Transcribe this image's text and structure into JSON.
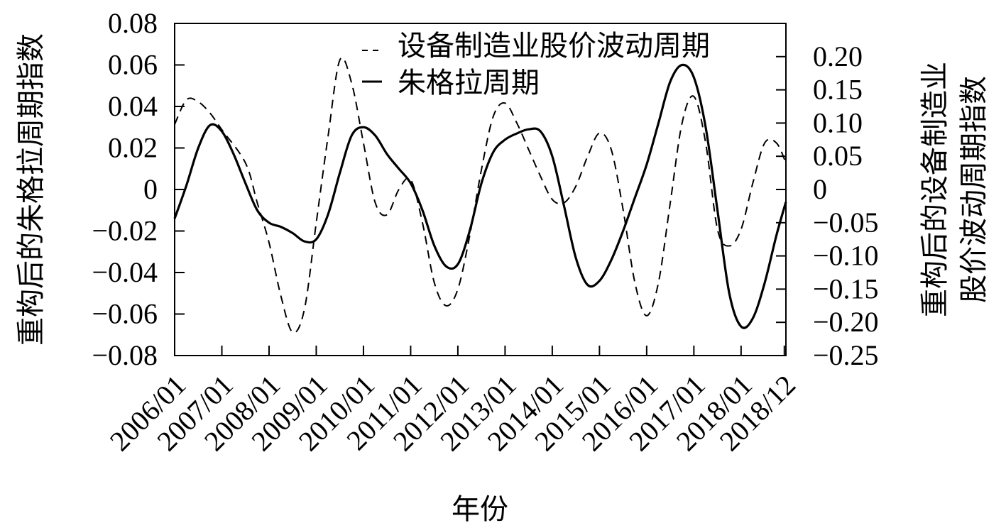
{
  "chart_data": {
    "type": "line",
    "xlabel": "年份",
    "ylabel_left": "重构后的朱格拉周期指数",
    "ylabel_right_lines": [
      "重构后的设备制造业",
      "股价波动周期指数"
    ],
    "x_ticks": [
      "2006/01",
      "2007/01",
      "2008/01",
      "2009/01",
      "2010/01",
      "2011/01",
      "2012/01",
      "2013/01",
      "2014/01",
      "2015/01",
      "2016/01",
      "2017/01",
      "2018/01",
      "2018/12"
    ],
    "x_range": [
      2006.0,
      2018.95
    ],
    "left_axis": {
      "ylim": [
        -0.08,
        0.08
      ],
      "ticks": [
        -0.08,
        -0.06,
        -0.04,
        -0.02,
        0,
        0.02,
        0.04,
        0.06,
        0.08
      ],
      "tick_labels": [
        "−0.08",
        "−0.06",
        "−0.04",
        "−0.02",
        "0",
        "0.02",
        "0.04",
        "0.06",
        "0.08"
      ]
    },
    "right_axis": {
      "ylim": [
        -0.25,
        0.25
      ],
      "ticks": [
        -0.25,
        -0.2,
        -0.15,
        -0.1,
        -0.05,
        0,
        0.05,
        0.1,
        0.15,
        0.2
      ],
      "tick_labels": [
        "−0.25",
        "−0.20",
        "−0.15",
        "−0.10",
        "−0.05",
        "0",
        "0.05",
        "0.10",
        "0.15",
        "0.20"
      ]
    },
    "legend_position": "top-right",
    "series": [
      {
        "name": "设备制造业股价波动周期",
        "style": "dashed",
        "axis": "right",
        "points": [
          [
            2006.0,
            0.098
          ],
          [
            2006.25,
            0.135
          ],
          [
            2006.5,
            0.132
          ],
          [
            2006.75,
            0.115
          ],
          [
            2007.0,
            0.09
          ],
          [
            2007.5,
            0.04
          ],
          [
            2007.75,
            -0.02
          ],
          [
            2008.0,
            -0.08
          ],
          [
            2008.25,
            -0.16
          ],
          [
            2008.5,
            -0.215
          ],
          [
            2008.75,
            -0.18
          ],
          [
            2009.0,
            -0.05
          ],
          [
            2009.25,
            0.08
          ],
          [
            2009.5,
            0.195
          ],
          [
            2009.75,
            0.16
          ],
          [
            2010.0,
            0.07
          ],
          [
            2010.25,
            -0.02
          ],
          [
            2010.5,
            -0.038
          ],
          [
            2010.75,
            0.0
          ],
          [
            2011.0,
            0.015
          ],
          [
            2011.25,
            -0.05
          ],
          [
            2011.5,
            -0.14
          ],
          [
            2011.75,
            -0.175
          ],
          [
            2012.0,
            -0.15
          ],
          [
            2012.25,
            -0.07
          ],
          [
            2012.5,
            0.03
          ],
          [
            2012.75,
            0.11
          ],
          [
            2013.0,
            0.13
          ],
          [
            2013.25,
            0.1
          ],
          [
            2013.5,
            0.06
          ],
          [
            2013.75,
            0.02
          ],
          [
            2014.0,
            -0.015
          ],
          [
            2014.25,
            -0.02
          ],
          [
            2014.5,
            0.005
          ],
          [
            2014.75,
            0.05
          ],
          [
            2015.0,
            0.085
          ],
          [
            2015.25,
            0.06
          ],
          [
            2015.5,
            -0.03
          ],
          [
            2015.75,
            -0.14
          ],
          [
            2016.0,
            -0.19
          ],
          [
            2016.25,
            -0.14
          ],
          [
            2016.5,
            -0.02
          ],
          [
            2016.75,
            0.1
          ],
          [
            2017.0,
            0.14
          ],
          [
            2017.25,
            0.07
          ],
          [
            2017.5,
            -0.06
          ],
          [
            2017.75,
            -0.085
          ],
          [
            2018.0,
            -0.06
          ],
          [
            2018.25,
            0.01
          ],
          [
            2018.5,
            0.07
          ],
          [
            2018.75,
            0.07
          ],
          [
            2018.95,
            0.04
          ]
        ]
      },
      {
        "name": "朱格拉周期",
        "style": "solid",
        "axis": "left",
        "points": [
          [
            2006.0,
            -0.014
          ],
          [
            2006.25,
            0.002
          ],
          [
            2006.5,
            0.02
          ],
          [
            2006.75,
            0.031
          ],
          [
            2007.0,
            0.028
          ],
          [
            2007.25,
            0.017
          ],
          [
            2007.5,
            0.003
          ],
          [
            2007.75,
            -0.01
          ],
          [
            2008.0,
            -0.016
          ],
          [
            2008.25,
            -0.018
          ],
          [
            2008.5,
            -0.021
          ],
          [
            2008.75,
            -0.025
          ],
          [
            2009.0,
            -0.024
          ],
          [
            2009.25,
            -0.012
          ],
          [
            2009.5,
            0.008
          ],
          [
            2009.75,
            0.026
          ],
          [
            2010.0,
            0.03
          ],
          [
            2010.25,
            0.026
          ],
          [
            2010.5,
            0.017
          ],
          [
            2010.75,
            0.01
          ],
          [
            2011.0,
            0.003
          ],
          [
            2011.25,
            -0.01
          ],
          [
            2011.5,
            -0.027
          ],
          [
            2011.75,
            -0.037
          ],
          [
            2012.0,
            -0.036
          ],
          [
            2012.25,
            -0.02
          ],
          [
            2012.5,
            0.003
          ],
          [
            2012.75,
            0.018
          ],
          [
            2013.0,
            0.024
          ],
          [
            2013.25,
            0.027
          ],
          [
            2013.5,
            0.029
          ],
          [
            2013.75,
            0.028
          ],
          [
            2014.0,
            0.016
          ],
          [
            2014.25,
            -0.008
          ],
          [
            2014.5,
            -0.033
          ],
          [
            2014.75,
            -0.046
          ],
          [
            2015.0,
            -0.044
          ],
          [
            2015.25,
            -0.034
          ],
          [
            2015.5,
            -0.02
          ],
          [
            2015.75,
            -0.004
          ],
          [
            2016.0,
            0.012
          ],
          [
            2016.25,
            0.032
          ],
          [
            2016.5,
            0.052
          ],
          [
            2016.75,
            0.06
          ],
          [
            2017.0,
            0.054
          ],
          [
            2017.25,
            0.03
          ],
          [
            2017.5,
            -0.01
          ],
          [
            2017.75,
            -0.05
          ],
          [
            2018.0,
            -0.066
          ],
          [
            2018.25,
            -0.062
          ],
          [
            2018.5,
            -0.045
          ],
          [
            2018.75,
            -0.022
          ],
          [
            2018.95,
            -0.006
          ]
        ]
      }
    ]
  }
}
